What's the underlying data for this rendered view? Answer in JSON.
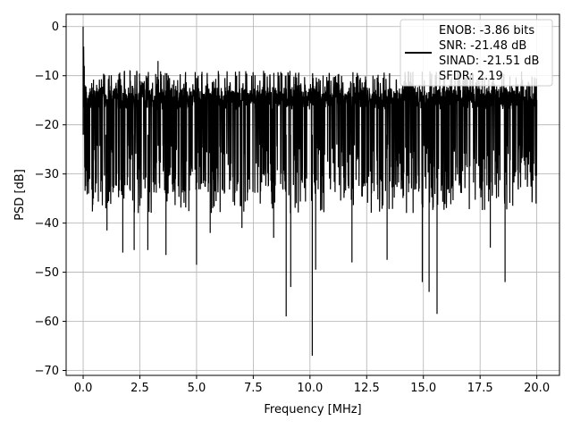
{
  "chart_data": {
    "type": "line",
    "xlabel": "Frequency [MHz]",
    "ylabel": "PSD [dB]",
    "xlim": [
      -0.75,
      21.0
    ],
    "ylim": [
      -71,
      2.5
    ],
    "grid": true,
    "legend_position": "top-right",
    "x_ticks": [
      0.0,
      2.5,
      5.0,
      7.5,
      10.0,
      12.5,
      15.0,
      17.5,
      20.0
    ],
    "x_tick_labels": [
      "0.0",
      "2.5",
      "5.0",
      "7.5",
      "10.0",
      "12.5",
      "15.0",
      "17.5",
      "20.0"
    ],
    "y_ticks": [
      0,
      -10,
      -20,
      -30,
      -40,
      -50,
      -60,
      -70
    ],
    "y_tick_labels": [
      "0",
      "−10",
      "−20",
      "−30",
      "−40",
      "−50",
      "−60",
      "−70"
    ],
    "series": [
      {
        "color": "#000000",
        "legend_lines": [
          "ENOB: -3.86 bits",
          "SNR: -21.48 dB",
          "SINAD: -21.51 dB",
          "SFDR: 2.19"
        ],
        "x_range": [
          0.0,
          20.0
        ],
        "peaks": [
          {
            "x": 0.0,
            "y": 0.0
          },
          {
            "x": 0.05,
            "y": -8
          },
          {
            "x": 3.3,
            "y": -7
          },
          {
            "x": 0.45,
            "y": -35
          },
          {
            "x": 1.0,
            "y": -37
          },
          {
            "x": 1.05,
            "y": -41.5
          },
          {
            "x": 1.75,
            "y": -46
          },
          {
            "x": 2.25,
            "y": -45.5
          },
          {
            "x": 2.85,
            "y": -45.5
          },
          {
            "x": 3.65,
            "y": -46.5
          },
          {
            "x": 5.0,
            "y": -48.5
          },
          {
            "x": 5.6,
            "y": -42
          },
          {
            "x": 7.0,
            "y": -41
          },
          {
            "x": 8.4,
            "y": -43
          },
          {
            "x": 8.95,
            "y": -59
          },
          {
            "x": 9.15,
            "y": -53
          },
          {
            "x": 10.1,
            "y": -67
          },
          {
            "x": 10.25,
            "y": -49.5
          },
          {
            "x": 11.85,
            "y": -48
          },
          {
            "x": 13.4,
            "y": -47.5
          },
          {
            "x": 14.95,
            "y": -52
          },
          {
            "x": 15.25,
            "y": -54
          },
          {
            "x": 15.6,
            "y": -58.5
          },
          {
            "x": 17.95,
            "y": -45
          },
          {
            "x": 18.6,
            "y": -52
          }
        ]
      }
    ]
  }
}
